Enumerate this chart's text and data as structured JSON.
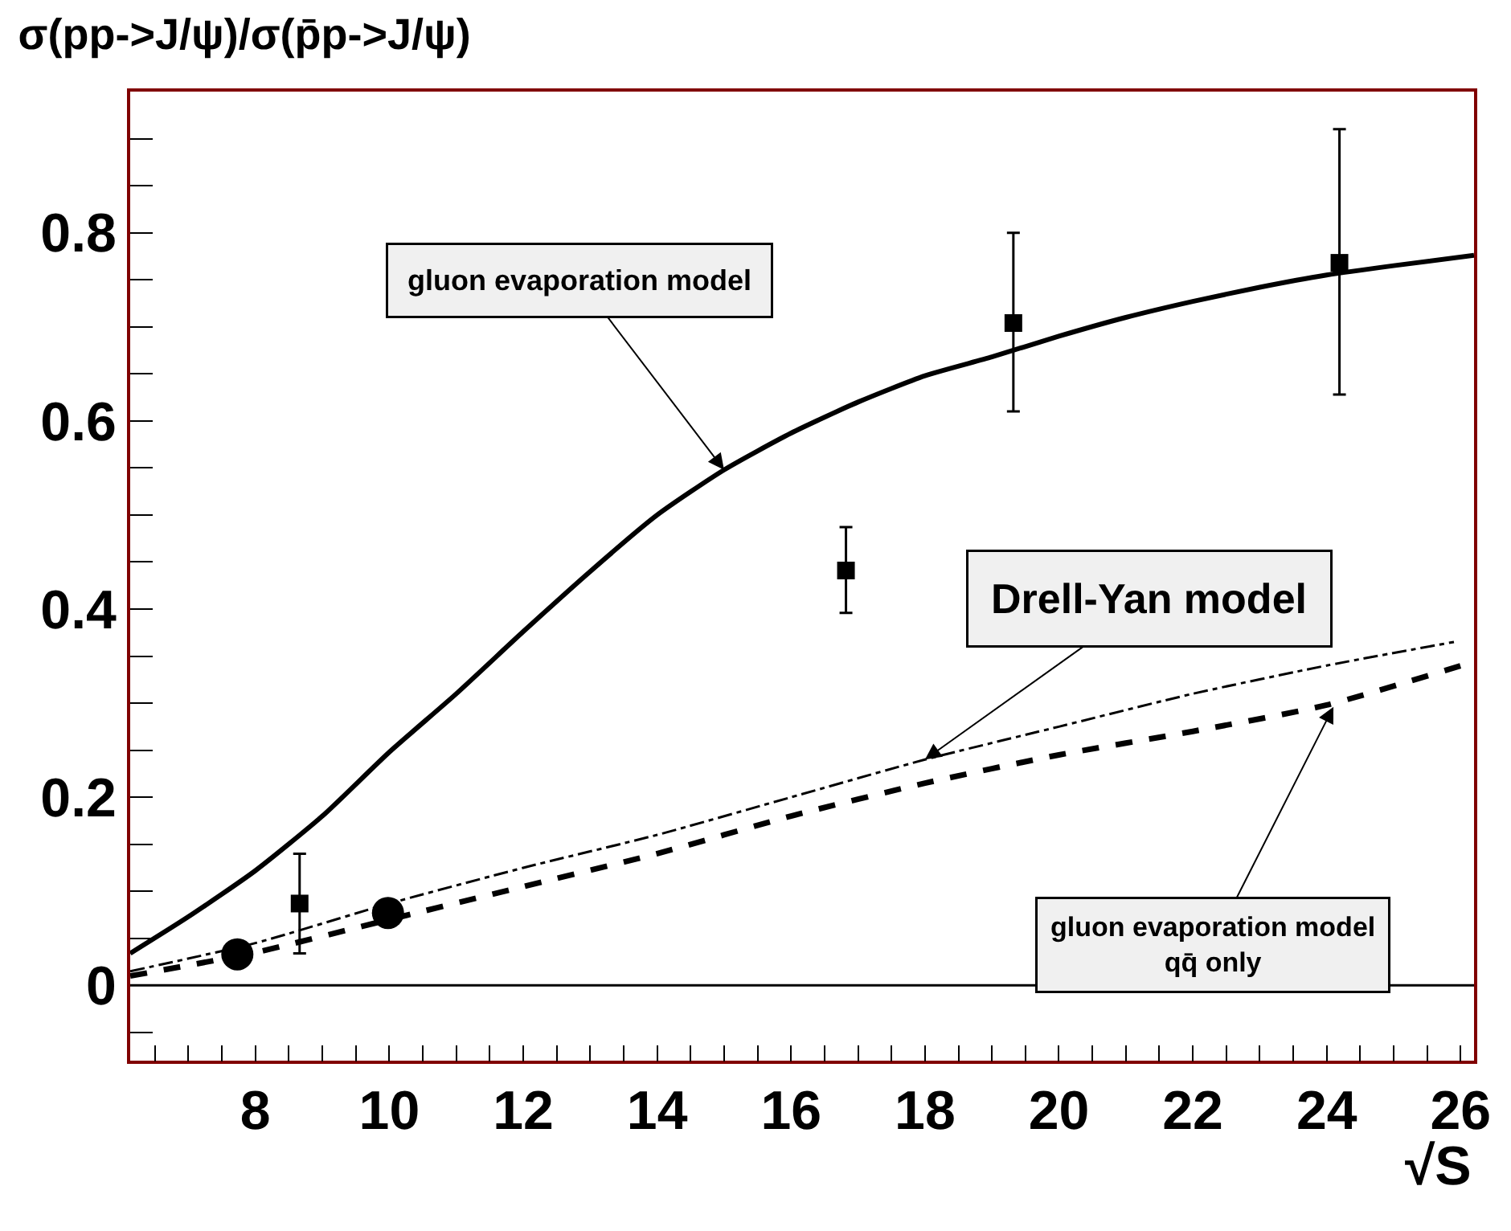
{
  "chart_data": {
    "type": "line",
    "title": "σ(pp->J/ψ)/σ(p̄p->J/ψ)",
    "xlabel": "√S",
    "xlim": [
      6.13,
      26.2
    ],
    "ylim": [
      -0.08,
      0.95
    ],
    "xticks": [
      {
        "value": 6.5,
        "label": null
      },
      {
        "value": 7,
        "label": null
      },
      {
        "value": 7.5,
        "label": null
      },
      8,
      {
        "value": 8.5,
        "label": null
      },
      {
        "value": 9,
        "label": null
      },
      {
        "value": 9.5,
        "label": null
      },
      10,
      {
        "value": 10.5,
        "label": null
      },
      {
        "value": 11,
        "label": null
      },
      {
        "value": 11.5,
        "label": null
      },
      12,
      {
        "value": 12.5,
        "label": null
      },
      {
        "value": 13,
        "label": null
      },
      {
        "value": 13.5,
        "label": null
      },
      14,
      {
        "value": 14.5,
        "label": null
      },
      {
        "value": 15,
        "label": null
      },
      {
        "value": 15.5,
        "label": null
      },
      16,
      {
        "value": 16.5,
        "label": null
      },
      {
        "value": 17,
        "label": null
      },
      {
        "value": 17.5,
        "label": null
      },
      18,
      {
        "value": 18.5,
        "label": null
      },
      {
        "value": 19,
        "label": null
      },
      {
        "value": 19.5,
        "label": null
      },
      20,
      {
        "value": 20.5,
        "label": null
      },
      {
        "value": 21,
        "label": null
      },
      {
        "value": 21.5,
        "label": null
      },
      22,
      {
        "value": 22.5,
        "label": null
      },
      {
        "value": 23,
        "label": null
      },
      {
        "value": 23.5,
        "label": null
      },
      24,
      {
        "value": 24.5,
        "label": null
      },
      {
        "value": 25,
        "label": null
      },
      {
        "value": 25.5,
        "label": null
      },
      26
    ],
    "yticks": [
      {
        "value": -0.05,
        "label": null
      },
      0,
      {
        "value": 0.05,
        "label": null
      },
      {
        "value": 0.1,
        "label": null
      },
      {
        "value": 0.15,
        "label": null
      },
      0.2,
      {
        "value": 0.25,
        "label": null
      },
      {
        "value": 0.3,
        "label": null
      },
      {
        "value": 0.35,
        "label": null
      },
      0.4,
      {
        "value": 0.45,
        "label": null
      },
      {
        "value": 0.5,
        "label": null
      },
      {
        "value": 0.55,
        "label": null
      },
      0.6,
      {
        "value": 0.65,
        "label": null
      },
      {
        "value": 0.7,
        "label": null
      },
      {
        "value": 0.75,
        "label": null
      },
      0.8,
      {
        "value": 0.85,
        "label": null
      },
      {
        "value": 0.9,
        "label": null
      }
    ],
    "series": [
      {
        "color": "#000000",
        "line_style": "solid",
        "marker": "none",
        "x": [
          6.13,
          7,
          8,
          9,
          10,
          11,
          12,
          13,
          14,
          15,
          16,
          17,
          18,
          19,
          20,
          21,
          22,
          23,
          24,
          25,
          26.2
        ],
        "values": [
          0.034,
          0.073,
          0.122,
          0.18,
          0.248,
          0.31,
          0.376,
          0.44,
          0.5,
          0.548,
          0.587,
          0.62,
          0.648,
          0.668,
          0.69,
          0.71,
          0.727,
          0.742,
          0.755,
          0.765,
          0.776
        ]
      },
      {
        "type": "line",
        "color": "#000000",
        "line_style": "dashdot",
        "marker": "none",
        "x": [
          6.13,
          8,
          10,
          12,
          14,
          16,
          18,
          20,
          22,
          24,
          25.9
        ],
        "values": [
          0.015,
          0.045,
          0.087,
          0.125,
          0.16,
          0.2,
          0.24,
          0.275,
          0.31,
          0.34,
          0.365
        ]
      },
      {
        "type": "line",
        "color": "#000000",
        "line_style": "dashed",
        "marker": "none",
        "x": [
          6.13,
          8,
          10,
          12,
          14,
          16,
          18,
          20,
          22,
          24,
          26.2
        ],
        "values": [
          0.01,
          0.035,
          0.07,
          0.105,
          0.14,
          0.18,
          0.215,
          0.245,
          0.27,
          0.298,
          0.344
        ]
      },
      {
        "type": "scatter",
        "color": "#000000",
        "marker": "square",
        "x": [
          8.66,
          16.82,
          19.32,
          24.19
        ],
        "values": [
          0.087,
          0.441,
          0.704,
          0.768
        ],
        "errors": [
          [
            0.034,
            0.14
          ],
          [
            0.396,
            0.487
          ],
          [
            0.61,
            0.8
          ],
          [
            0.628,
            0.91
          ]
        ]
      },
      {
        "type": "scatter",
        "color": "#000000",
        "marker": "circle",
        "x": [
          7.73,
          9.98
        ],
        "values": [
          0.033,
          0.077
        ]
      }
    ],
    "ref_lines": [
      {
        "axis": "y",
        "value": 0,
        "color": "#000000",
        "line_style": "solid"
      }
    ],
    "annotations": [
      {
        "text": "gluon evaporation model",
        "x": 15,
        "y": 0.548
      },
      {
        "text": "Drell-Yan model",
        "x": 18,
        "y": 0.24
      },
      {
        "text": "gluon evaporation model\nqq̄ only",
        "x": 24.1,
        "y": 0.296
      }
    ]
  }
}
